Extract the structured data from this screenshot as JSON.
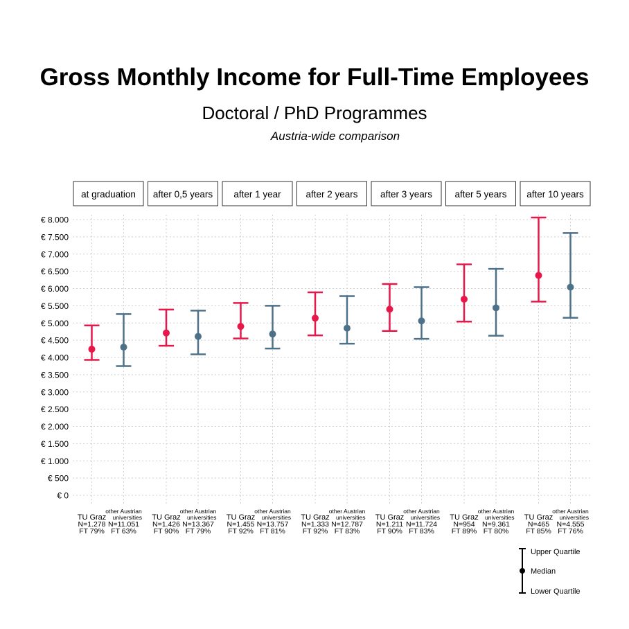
{
  "header": {
    "title": "Gross Monthly Income for Full-Time Employees",
    "subtitle": "Doctoral / PhD Programmes",
    "caption": "Austria-wide comparison"
  },
  "colors": {
    "tu_graz": "#e8174a",
    "other": "#4d7189",
    "grid": "#d0d0d0"
  },
  "chart_data": {
    "type": "errorbar",
    "y_tick_labels": [
      "€ 0",
      "€ 500",
      "€ 1.000",
      "€ 1.500",
      "€ 2.000",
      "€ 2.500",
      "€ 3.000",
      "€ 3.500",
      "€ 4.000",
      "€ 4.500",
      "€ 5.000",
      "€ 5.500",
      "€ 6.000",
      "€ 6.500",
      "€ 7.000",
      "€ 7.500",
      "€ 8.000"
    ],
    "y_tick_values": [
      0,
      500,
      1000,
      1500,
      2000,
      2500,
      3000,
      3500,
      4000,
      4500,
      5000,
      5500,
      6000,
      6500,
      7000,
      7500,
      8000
    ],
    "panels": [
      {
        "label": "at graduation",
        "groups": [
          {
            "series": "TU Graz",
            "name_lines": [
              "TU Graz"
            ],
            "n": "N=1.278",
            "ft": "FT 79%",
            "lower": 3930,
            "median": 4240,
            "upper": 4930
          },
          {
            "series": "other Austrian universities",
            "name_lines": [
              "other Austrian",
              "universities"
            ],
            "n": "N=11.051",
            "ft": "FT 63%",
            "lower": 3750,
            "median": 4300,
            "upper": 5260
          }
        ]
      },
      {
        "label": "after 0,5 years",
        "groups": [
          {
            "series": "TU Graz",
            "name_lines": [
              "TU Graz"
            ],
            "n": "N=1.426",
            "ft": "FT 90%",
            "lower": 4340,
            "median": 4710,
            "upper": 5390
          },
          {
            "series": "other Austrian universities",
            "name_lines": [
              "other Austrian",
              "universities"
            ],
            "n": "N=13.367",
            "ft": "FT 79%",
            "lower": 4090,
            "median": 4610,
            "upper": 5360
          }
        ]
      },
      {
        "label": "after 1 year",
        "groups": [
          {
            "series": "TU Graz",
            "name_lines": [
              "TU Graz"
            ],
            "n": "N=1.455",
            "ft": "FT 92%",
            "lower": 4550,
            "median": 4900,
            "upper": 5580
          },
          {
            "series": "other Austrian universities",
            "name_lines": [
              "other Austrian",
              "universities"
            ],
            "n": "N=13.757",
            "ft": "FT 81%",
            "lower": 4260,
            "median": 4680,
            "upper": 5500
          }
        ]
      },
      {
        "label": "after 2 years",
        "groups": [
          {
            "series": "TU Graz",
            "name_lines": [
              "TU Graz"
            ],
            "n": "N=1.333",
            "ft": "FT 92%",
            "lower": 4640,
            "median": 5140,
            "upper": 5890
          },
          {
            "series": "other Austrian universities",
            "name_lines": [
              "other Austrian",
              "universities"
            ],
            "n": "N=12.787",
            "ft": "FT 83%",
            "lower": 4400,
            "median": 4850,
            "upper": 5780
          }
        ]
      },
      {
        "label": "after 3 years",
        "groups": [
          {
            "series": "TU Graz",
            "name_lines": [
              "TU Graz"
            ],
            "n": "N=1.211",
            "ft": "FT 90%",
            "lower": 4770,
            "median": 5400,
            "upper": 6130
          },
          {
            "series": "other Austrian universities",
            "name_lines": [
              "other Austrian",
              "universities"
            ],
            "n": "N=11.724",
            "ft": "FT 83%",
            "lower": 4540,
            "median": 5060,
            "upper": 6040
          }
        ]
      },
      {
        "label": "after 5 years",
        "groups": [
          {
            "series": "TU Graz",
            "name_lines": [
              "TU Graz"
            ],
            "n": "N=954",
            "ft": "FT 89%",
            "lower": 5040,
            "median": 5690,
            "upper": 6700
          },
          {
            "series": "other Austrian universities",
            "name_lines": [
              "other Austrian",
              "universities"
            ],
            "n": "N=9.361",
            "ft": "FT 80%",
            "lower": 4630,
            "median": 5440,
            "upper": 6570
          }
        ]
      },
      {
        "label": "after 10 years",
        "groups": [
          {
            "series": "TU Graz",
            "name_lines": [
              "TU Graz"
            ],
            "n": "N=465",
            "ft": "FT 85%",
            "lower": 5620,
            "median": 6380,
            "upper": 8060
          },
          {
            "series": "other Austrian universities",
            "name_lines": [
              "other Austrian",
              "universities"
            ],
            "n": "N=4.555",
            "ft": "FT 76%",
            "lower": 5150,
            "median": 6040,
            "upper": 7610
          }
        ]
      }
    ],
    "legend": {
      "upper": "Upper Quartile",
      "median": "Median",
      "lower": "Lower Quartile"
    },
    "ylim": [
      0,
      8000
    ],
    "grid": true
  }
}
